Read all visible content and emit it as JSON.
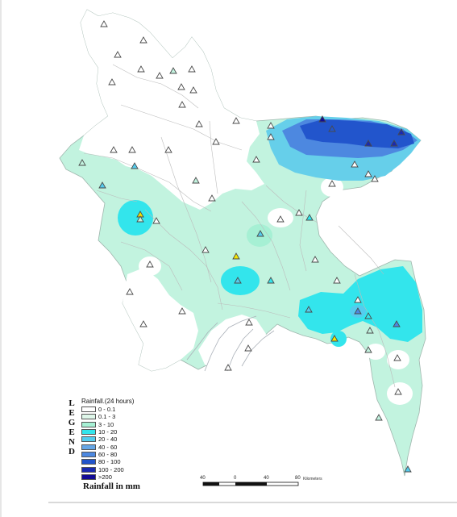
{
  "legend": {
    "side_letters": [
      "L",
      "E",
      "G",
      "E",
      "N",
      "D"
    ],
    "title": "Rainfall.(24 hours)",
    "classes": [
      {
        "label": "0 - 0.1",
        "color": "#ffffff"
      },
      {
        "label": "0.1 - 3",
        "color": "#dff7ea"
      },
      {
        "label": "3 - 10",
        "color": "#a6f0d4"
      },
      {
        "label": "10 - 20",
        "color": "#33e5ec"
      },
      {
        "label": "20 - 40",
        "color": "#55ccee"
      },
      {
        "label": "40 - 60",
        "color": "#66a6e6"
      },
      {
        "label": "60 - 80",
        "color": "#4d88e0"
      },
      {
        "label": "80 - 100",
        "color": "#2255cc"
      },
      {
        "label": "100 - 200",
        "color": "#1a2ab0"
      },
      {
        "label": ">200",
        "color": "#120b96"
      }
    ]
  },
  "caption": "Rainfall in mm",
  "scale_bar": {
    "ticks": [
      "40",
      "0",
      "40",
      "80"
    ],
    "unit": "Kilometers"
  },
  "colors": {
    "land_base": "#c2f3df",
    "no_rain": "#ffffff",
    "boundary": "#b5b5b5",
    "station_stroke": "#4a4a4a",
    "station_highlight": "#f5e600"
  }
}
